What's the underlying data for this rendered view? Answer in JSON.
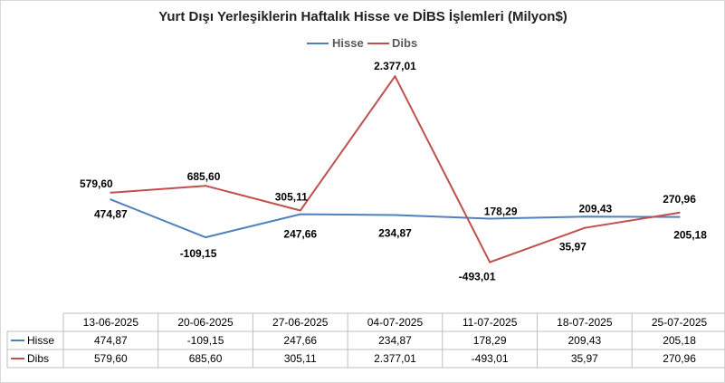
{
  "chart_data": {
    "type": "line",
    "title": "Yurt Dışı Yerleşiklerin Haftalık Hisse ve DİBS İşlemleri (Milyon$)",
    "categories": [
      "13-06-2025",
      "20-06-2025",
      "27-06-2025",
      "04-07-2025",
      "11-07-2025",
      "18-07-2025",
      "25-07-2025"
    ],
    "series": [
      {
        "name": "Hisse",
        "color": "#4F81BD",
        "values": [
          474.87,
          -109.15,
          247.66,
          234.87,
          178.29,
          209.43,
          205.18
        ],
        "labels": [
          "474,87",
          "-109,15",
          "247,66",
          "234,87",
          "178,29",
          "209,43",
          "205,18"
        ]
      },
      {
        "name": "Dibs",
        "color": "#C0504D",
        "values": [
          579.6,
          685.6,
          305.11,
          2377.01,
          -493.01,
          35.97,
          270.96
        ],
        "labels": [
          "579,60",
          "685,60",
          "305,11",
          "2.377,01",
          "-493,01",
          "35,97",
          "270,96"
        ]
      }
    ],
    "ylim": [
      -600,
      2600
    ],
    "grid": false,
    "legend_position": "top",
    "data_table": true
  }
}
